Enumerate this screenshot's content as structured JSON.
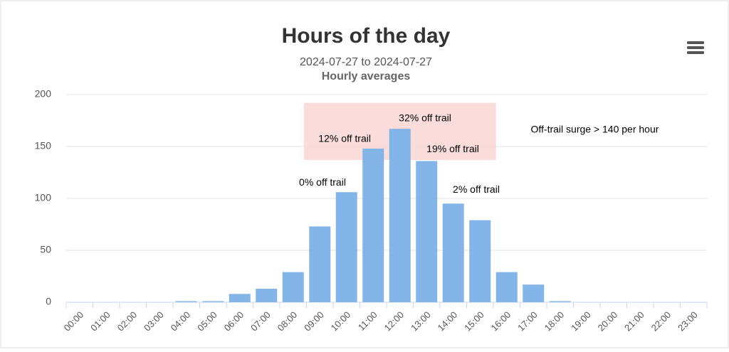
{
  "chart_data": {
    "type": "bar",
    "title": "Hours of the day",
    "subtitle": "2024-07-27 to 2024-07-27",
    "subtitle2": "Hourly averages",
    "categories": [
      "00:00",
      "01:00",
      "02:00",
      "03:00",
      "04:00",
      "05:00",
      "06:00",
      "07:00",
      "08:00",
      "09:00",
      "10:00",
      "11:00",
      "12:00",
      "13:00",
      "14:00",
      "15:00",
      "16:00",
      "17:00",
      "18:00",
      "19:00",
      "20:00",
      "21:00",
      "22:00",
      "23:00"
    ],
    "values": [
      0,
      0,
      0,
      0,
      1,
      1,
      8,
      13,
      29,
      73,
      106,
      148,
      167,
      136,
      95,
      79,
      29,
      17,
      1,
      0,
      0,
      0,
      0,
      0
    ],
    "color": "#7cb1e8",
    "ylim": [
      0,
      200
    ],
    "yticks": [
      0,
      50,
      100,
      150,
      200
    ],
    "grid": true,
    "plot_band": {
      "label": "Off-trail surge > 140 per hour",
      "ylim": [
        137,
        192
      ],
      "xlim": [
        8.4,
        15.6
      ],
      "color": "#f9d3d2",
      "label_x": 16.9,
      "label_y": 166
    },
    "annotations": [
      {
        "text": "0% off trail",
        "x": 9.1,
        "y": 115
      },
      {
        "text": "12% off trail",
        "x": 9.93,
        "y": 157
      },
      {
        "text": "32% off trail",
        "x": 12.94,
        "y": 177
      },
      {
        "text": "19% off trail",
        "x": 13.98,
        "y": 147
      },
      {
        "text": "2% off trail",
        "x": 14.86,
        "y": 108
      }
    ]
  }
}
